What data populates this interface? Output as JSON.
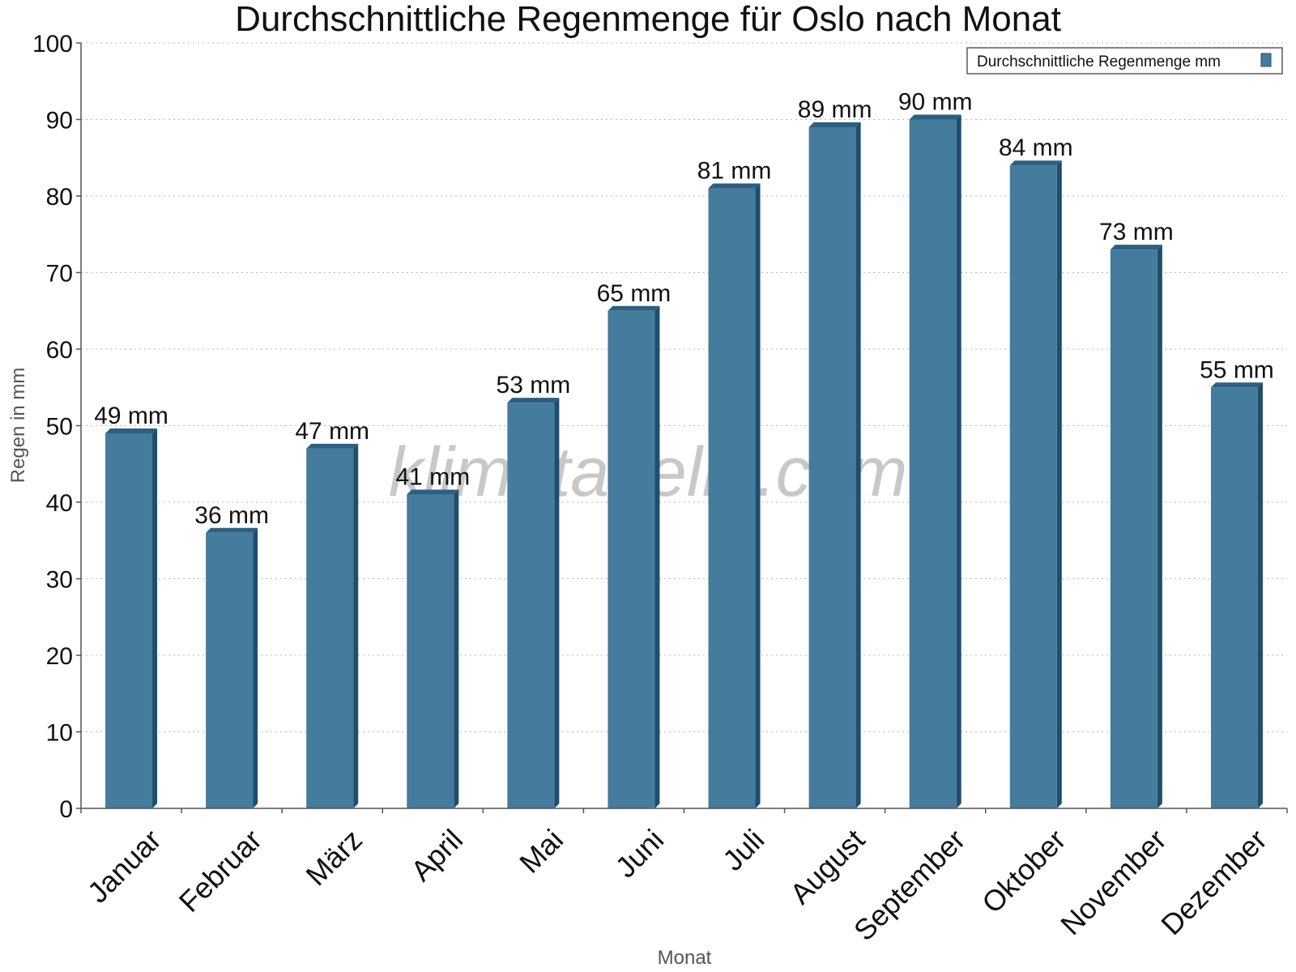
{
  "chart_data": {
    "type": "bar",
    "title": "Durchschnittliche Regenmenge für Oslo nach Monat",
    "xlabel": "Monat",
    "ylabel": "Regen in mm",
    "categories": [
      "Januar",
      "Februar",
      "März",
      "April",
      "Mai",
      "Juni",
      "Juli",
      "August",
      "September",
      "Oktober",
      "November",
      "Dezember"
    ],
    "series": [
      {
        "name": "Durchschnittliche Regenmenge mm",
        "values": [
          49,
          36,
          47,
          41,
          53,
          65,
          81,
          89,
          90,
          84,
          73,
          55
        ],
        "data_labels": [
          "49 mm",
          "36 mm",
          "47 mm",
          "41 mm",
          "53 mm",
          "65 mm",
          "81 mm",
          "89 mm",
          "90 mm",
          "84 mm",
          "73 mm",
          "55 mm"
        ]
      }
    ],
    "ylim": [
      0,
      100
    ],
    "yticks": [
      "0",
      "10",
      "20",
      "30",
      "40",
      "50",
      "60",
      "70",
      "80",
      "90",
      "100"
    ],
    "grid": true,
    "legend_position": "top-right"
  },
  "colors": {
    "bar_face": "#457b9d",
    "bar_side": "#1d4e6e",
    "bar_top": "#2c5f80",
    "legend_swatch": "#457b9d"
  },
  "watermark": "klimatabelle.com"
}
